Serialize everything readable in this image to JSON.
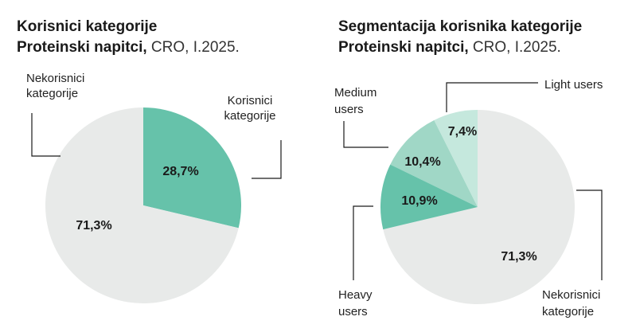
{
  "chart_data": [
    {
      "type": "pie",
      "title_bold": "Korisnici kategorije",
      "title_line2_bold": "Proteinski napitci,",
      "title_line2_rest": " CRO, I.2025.",
      "slices": [
        {
          "label_lines": [
            "Korisnici",
            "kategorije"
          ],
          "value": 28.7,
          "value_label": "28,7%",
          "color": "#66c2aa"
        },
        {
          "label_lines": [
            "Nekorisnici",
            "kategorije"
          ],
          "value": 71.3,
          "value_label": "71,3%",
          "color": "#e8eae9"
        }
      ]
    },
    {
      "type": "pie",
      "title_bold": "Segmentacija korisnika kategorije",
      "title_line2_bold": "Proteinski napitci,",
      "title_line2_rest": " CRO, I.2025.",
      "slices": [
        {
          "label_lines": [
            "Light users"
          ],
          "value": 7.4,
          "value_label": "7,4%",
          "color": "#c5e8dd"
        },
        {
          "label_lines": [
            "Medium",
            "users"
          ],
          "value": 10.4,
          "value_label": "10,4%",
          "color": "#a0d7c6"
        },
        {
          "label_lines": [
            "Heavy",
            "users"
          ],
          "value": 10.9,
          "value_label": "10,9%",
          "color": "#66c2aa"
        },
        {
          "label_lines": [
            "Nekorisnici",
            "kategorije"
          ],
          "value": 71.3,
          "value_label": "71,3%",
          "color": "#e8eae9"
        }
      ]
    }
  ]
}
